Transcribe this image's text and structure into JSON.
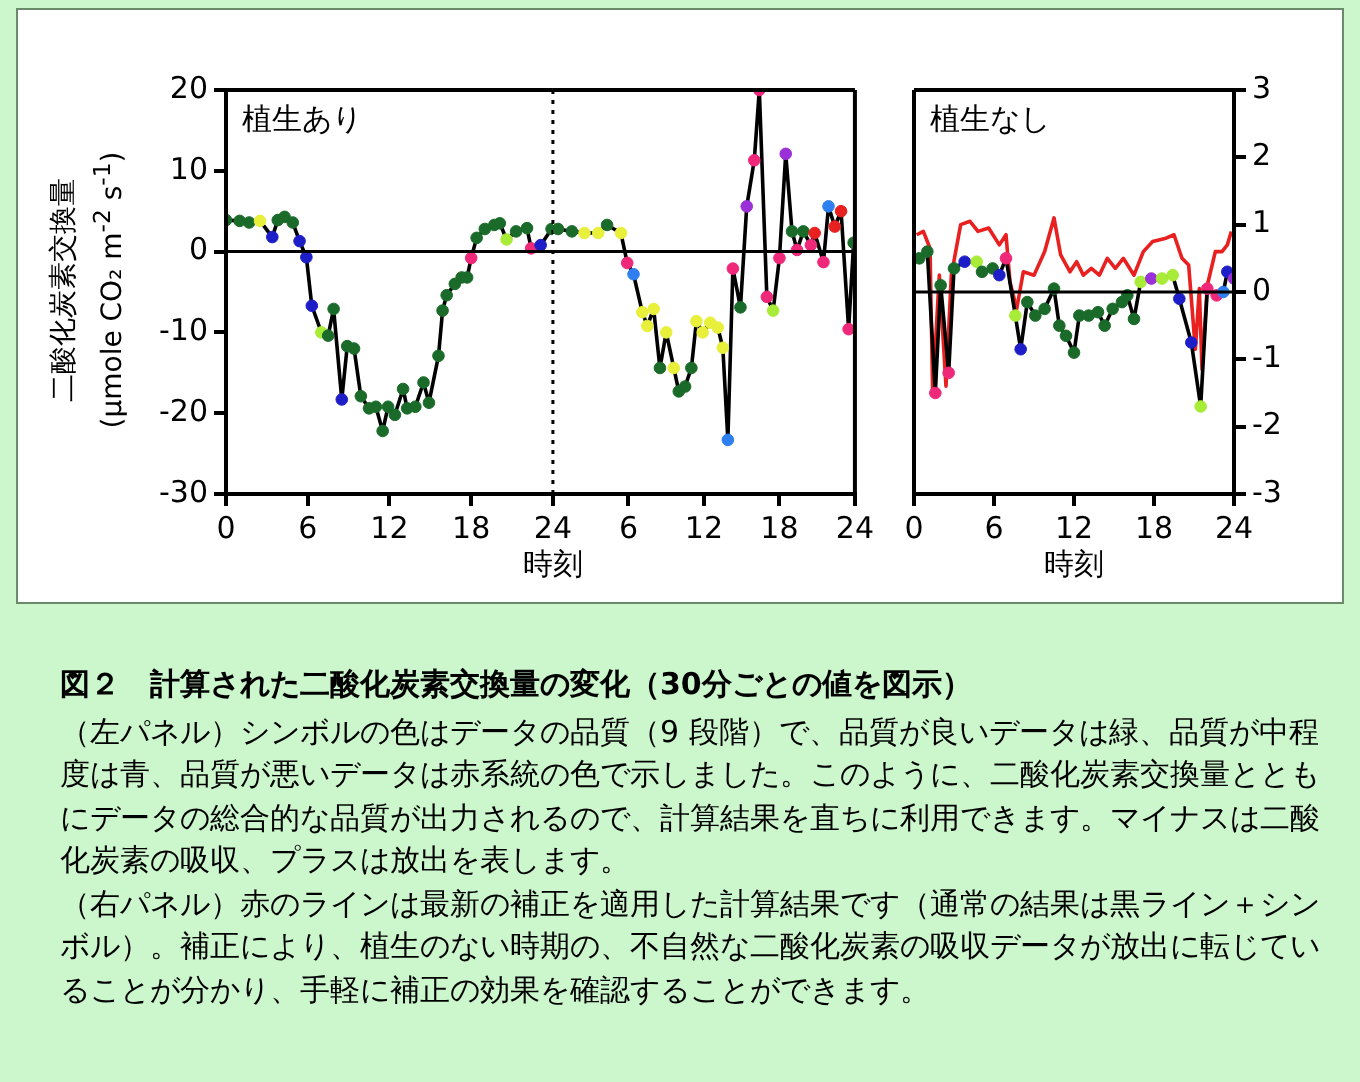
{
  "chart_data": [
    {
      "type": "line",
      "ylabel": "二酸化炭素交換量 (μmole CO₂ m$^{-2}$ s$^{-1}$)",
      "xlabel": "時刻",
      "annotations": [
        "植生あり"
      ],
      "xlim": [
        0,
        24
      ],
      "xticks": [
        0,
        6,
        12,
        18,
        24
      ],
      "ylim": [
        -30,
        20
      ],
      "yticks": [
        -30,
        -20,
        -10,
        0,
        10,
        20
      ],
      "grid": false,
      "legend": false,
      "line_style": "solid",
      "ref_lines": [
        {
          "axis": "y",
          "value": 0,
          "color": "#000000",
          "line_style": "solid"
        },
        {
          "axis": "x",
          "value": 24,
          "color": "#000000",
          "line_style": "dotted"
        }
      ],
      "series": [
        {
          "color": "#000000",
          "marker": "circle",
          "x": [
            0,
            1.0,
            1.7,
            2.5,
            3.4,
            3.8,
            4.3,
            4.9,
            5.4,
            5.9,
            6.3,
            7.0,
            7.5,
            7.9,
            8.5,
            8.9,
            9.4,
            9.9,
            10.5,
            11.0,
            11.5,
            11.9,
            12.4,
            13.0,
            13.3,
            13.9,
            14.5,
            14.9,
            15.6,
            15.9,
            16.2,
            16.8,
            17.3,
            17.7,
            18.0,
            18.4,
            19.0,
            19.7,
            20.1,
            20.6,
            21.3,
            22.1,
            22.4,
            23.1,
            23.9
          ],
          "values": [
            3.9,
            3.8,
            3.6,
            3.8,
            1.8,
            3.9,
            4.3,
            3.6,
            1.3,
            -0.7,
            -6.7,
            -10,
            -10.4,
            -7.1,
            -18.3,
            -11.7,
            -12,
            -17.9,
            -19.4,
            -19.2,
            -22.2,
            -19.2,
            -20.2,
            -17,
            -19.4,
            -19.2,
            -16.2,
            -18.7,
            -12.9,
            -7.3,
            -5.4,
            -4,
            -3.2,
            -3.2,
            -0.8,
            1.7,
            2.8,
            3.3,
            3.5,
            1.5,
            2.5,
            2.9,
            0.4,
            0.8,
            2.8
          ],
          "colors": [
            "#1a6b2a",
            "#1a6b2a",
            "#1a6b2a",
            "#e8f03c",
            "#1e1ec8",
            "#1a6b2a",
            "#1a6b2a",
            "#1a6b2a",
            "#1e1ec8",
            "#1e1ec8",
            "#1e1ec8",
            "#a8ec38",
            "#1a6b2a",
            "#1a6b2a",
            "#1e1ec8",
            "#1a6b2a",
            "#1a6b2a",
            "#1a6b2a",
            "#1a6b2a",
            "#1a6b2a",
            "#1a6b2a",
            "#1a6b2a",
            "#1a6b2a",
            "#1a6b2a",
            "#1a6b2a",
            "#1a6b2a",
            "#1a6b2a",
            "#1a6b2a",
            "#1a6b2a",
            "#1a6b2a",
            "#1a6b2a",
            "#1a6b2a",
            "#1a6b2a",
            "#1a6b2a",
            "#f0287a",
            "#1a6b2a",
            "#1a6b2a",
            "#1a6b2a",
            "#1a6b2a",
            "#a8ec38",
            "#1a6b2a",
            "#1a6b2a",
            "#f0287a",
            "#1e1ec8",
            "#1a6b2a"
          ]
        }
      ]
    },
    {
      "type": "line",
      "tick_labels": "x",
      "xlim": [
        0,
        24
      ],
      "xticks": [
        {
          "value": 0,
          "label": null
        },
        6,
        12,
        18,
        24
      ],
      "ylim": [
        -30,
        20
      ],
      "grid": false,
      "legend": false,
      "line_style": "solid",
      "ref_lines": [
        {
          "axis": "y",
          "value": 0,
          "color": "#000000",
          "line_style": "solid"
        }
      ],
      "series": [
        {
          "color": "#000000",
          "marker": "circle",
          "x": [
            0.4,
            1.5,
            2.5,
            3.6,
            4.3,
            5.4,
            5.9,
            6.4,
            7.1,
            7.5,
            8.0,
            8.5,
            9.0,
            9.6,
            10.0,
            10.5,
            11.0,
            11.4,
            11.9,
            12.5,
            13.1,
            13.5,
            13.9,
            14.3,
            14.9,
            15.4,
            16.0,
            16.4,
            17.0,
            17.5,
            18.0,
            18.5,
            19.0,
            19.4,
            19.9,
            20.5,
            20.8,
            21.5,
            21.9,
            22.4,
            22.9,
            23.5,
            23.9
          ],
          "values": [
            2.8,
            2.5,
            2.3,
            2.3,
            3.3,
            2.3,
            -1.4,
            -2.8,
            -7.5,
            -9.2,
            -7.1,
            -14.4,
            -10,
            -14.4,
            -17.3,
            -16.7,
            -14.4,
            -8.6,
            -10,
            -8.8,
            -9.4,
            -11.9,
            -23.3,
            -2.1,
            -6.9,
            5.6,
            11.3,
            20,
            -5.6,
            -7.3,
            -0.8,
            12.1,
            2.5,
            0.2,
            2.5,
            0.8,
            2.3,
            -1.3,
            5.6,
            3.1,
            5,
            -9.6,
            1.1
          ],
          "colors": [
            "#1a6b2a",
            "#1a6b2a",
            "#e8f03c",
            "#e8f03c",
            "#1a6b2a",
            "#e8f03c",
            "#f0287a",
            "#2f7ff0",
            "#e8f03c",
            "#e8f03c",
            "#e8f03c",
            "#1a6b2a",
            "#e8f03c",
            "#e8f03c",
            "#1a6b2a",
            "#1a6b2a",
            "#1a6b2a",
            "#e8f03c",
            "#e8f03c",
            "#e8f03c",
            "#e8f03c",
            "#e8f03c",
            "#2f7ff0",
            "#f0287a",
            "#1a6b2a",
            "#9b30d8",
            "#f0287a",
            "#f0287a",
            "#f0287a",
            "#a8ec38",
            "#f0287a",
            "#9b30d8",
            "#1a6b2a",
            "#f0287a",
            "#1a6b2a",
            "#f0287a",
            "#e82020",
            "#f0287a",
            "#2f7ff0",
            "#e82020",
            "#e82020",
            "#f0287a",
            "#1a6b2a"
          ]
        }
      ]
    },
    {
      "type": "line",
      "xlabel": "時刻",
      "annotations": [
        "植生なし"
      ],
      "xlim": [
        0,
        24
      ],
      "xticks": [
        0,
        6,
        12,
        18,
        24
      ],
      "ylim": [
        -3,
        3
      ],
      "yticks": [
        -3,
        -2,
        -1,
        0,
        1,
        2,
        3
      ],
      "grid": false,
      "legend": false,
      "line_style": "solid",
      "ref_lines": [
        {
          "axis": "y",
          "value": 0,
          "color": "#000000",
          "line_style": "solid"
        }
      ],
      "series": [
        {
          "color": "#000000",
          "marker": "circle",
          "x": [
            0.4,
            1.0,
            1.6,
            2.0,
            2.6,
            3.0,
            3.8,
            4.7,
            5.1,
            5.9,
            6.4,
            6.9,
            7.6,
            8.0,
            8.5,
            9.1,
            9.8,
            10.5,
            10.9,
            11.4,
            12.0,
            12.4,
            13.1,
            13.8,
            14.3,
            14.9,
            15.6,
            16.0,
            16.5,
            17.0,
            17.8,
            18.6,
            19.4,
            19.9,
            20.8,
            21.5,
            22.0,
            22.7,
            23.2,
            23.5,
            24.0
          ],
          "values": [
            0.5,
            0.6,
            -1.5,
            0.1,
            -1.2,
            0.35,
            0.45,
            0.45,
            0.3,
            0.35,
            0.25,
            0.5,
            -0.35,
            -0.85,
            -0.15,
            -0.35,
            -0.25,
            0.05,
            -0.5,
            -0.65,
            -0.9,
            -0.35,
            -0.35,
            -0.3,
            -0.5,
            -0.25,
            -0.15,
            -0.05,
            -0.4,
            0.15,
            0.2,
            0.2,
            0.25,
            -0.1,
            -0.75,
            -1.7,
            0.05,
            -0.05,
            0,
            0.3,
            0.2
          ],
          "colors": [
            "#1a6b2a",
            "#1a6b2a",
            "#f0287a",
            "#1a6b2a",
            "#f0287a",
            "#1a6b2a",
            "#1e1ec8",
            "#a8ec38",
            "#1a6b2a",
            "#1a6b2a",
            "#1e1ec8",
            "#f0287a",
            "#a8ec38",
            "#1e1ec8",
            "#1a6b2a",
            "#1a6b2a",
            "#1a6b2a",
            "#1a6b2a",
            "#1a6b2a",
            "#1a6b2a",
            "#1a6b2a",
            "#1a6b2a",
            "#1a6b2a",
            "#1a6b2a",
            "#1a6b2a",
            "#1a6b2a",
            "#1a6b2a",
            "#1a6b2a",
            "#1a6b2a",
            "#a8ec38",
            "#9b30d8",
            "#a8ec38",
            "#a8ec38",
            "#1e1ec8",
            "#1e1ec8",
            "#a8ec38",
            "#f0287a",
            "#f0287a",
            "#2f7ff0",
            "#1e1ec8",
            "#9b30d8"
          ]
        },
        {
          "color": "#e82020",
          "marker": "none",
          "x": [
            0.2,
            0.7,
            1.2,
            1.4,
            1.9,
            2.4,
            2.8,
            3.5,
            4.2,
            4.8,
            5.6,
            6.4,
            6.9,
            7.2,
            7.7,
            8.2,
            9.0,
            9.8,
            10.5,
            11.0,
            11.7,
            12.2,
            12.7,
            13.3,
            13.9,
            14.5,
            15.1,
            15.7,
            16.5,
            17.2,
            17.9,
            18.9,
            19.5,
            20.1,
            20.6,
            21.1,
            21.4,
            21.6,
            22.0,
            22.6,
            23.1,
            23.5,
            23.8
          ],
          "values": [
            0.85,
            0.9,
            0.65,
            -1.5,
            0.25,
            -1.4,
            0.25,
            1.0,
            1.05,
            0.9,
            0.95,
            0.7,
            0.85,
            0.15,
            -0.25,
            0.3,
            0.25,
            0.6,
            1.1,
            0.55,
            0.3,
            0.45,
            0.25,
            0.35,
            0.25,
            0.5,
            0.35,
            0.5,
            0.25,
            0.6,
            0.75,
            0.8,
            0.85,
            0.5,
            0.4,
            -0.85,
            0.05,
            -1.15,
            0.1,
            0.6,
            0.6,
            0.7,
            0.9
          ]
        }
      ]
    },
    {
      "type": "other",
      "title": "図２　計算された二酸化炭素交換量の変化（30分ごとの値を図示）",
      "annotations": [
        "（左パネル）シンボルの色はデータの品質（9 段階）で、品質が良いデータは緑、品質が中程度は青、品質が悪いデータは赤系統の色で示しました。このように、二酸化炭素交換量とともにデータの総合的な品質が出力されるので、計算結果を直ちに利用できます。マイナスは二酸化炭素の吸収、プラスは放出を表します。",
        "（右パネル）赤のラインは最新の補正を適用した計算結果です（通常の結果は黒ライン＋シンボル）。補正により、植生のない時期の、不自然な二酸化炭素の吸収データが放出に転じていることが分かり、手軽に補正の効果を確認することができます。"
      ]
    }
  ]
}
